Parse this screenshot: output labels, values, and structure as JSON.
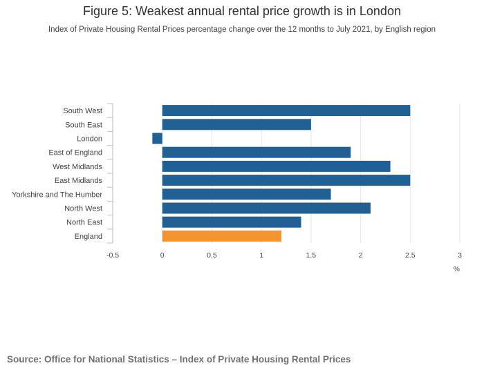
{
  "title": "Figure 5: Weakest annual rental price growth is in London",
  "subtitle": "Index of Private Housing Rental Prices percentage change over the 12 months to July 2021, by English region",
  "source": "Source: Office for National Statistics – Index of Private Housing Rental Prices",
  "colors": {
    "region": "#206095",
    "england": "#F39431",
    "grid": "#e6e6e6",
    "axis": "#bdbdbd"
  },
  "chart_data": {
    "type": "bar",
    "orientation": "horizontal",
    "categories": [
      "South West",
      "South East",
      "London",
      "East of England",
      "West Midlands",
      "East Midlands",
      "Yorkshire and The Humber",
      "North West",
      "North East",
      "England"
    ],
    "values": [
      2.5,
      1.5,
      -0.1,
      1.9,
      2.3,
      2.5,
      1.7,
      2.1,
      1.4,
      1.2
    ],
    "highlight": [
      "England"
    ],
    "title": "Figure 5: Weakest annual rental price growth is in London",
    "xlabel": "%",
    "ylabel": "",
    "xlim": [
      -0.5,
      3
    ],
    "xticks": [
      -0.5,
      0,
      0.5,
      1,
      1.5,
      2,
      2.5,
      3
    ],
    "xtick_labels": [
      "-0.5",
      "0",
      "0.5",
      "1",
      "1.5",
      "2",
      "2.5",
      "3"
    ],
    "grid": true
  }
}
